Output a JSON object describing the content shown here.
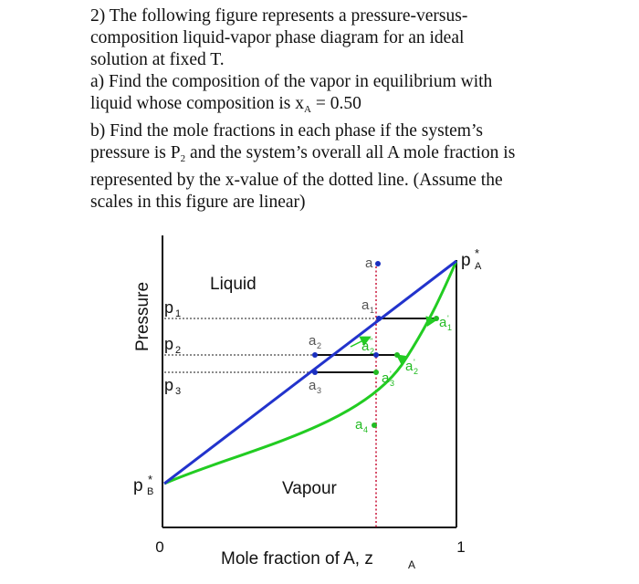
{
  "question": {
    "line1": "2) The following figure represents a pressure-versus-",
    "line2": "composition liquid-vapor phase diagram for an ideal",
    "line3": "solution at fixed T.",
    "line4": "a) Find the composition of the vapor in equilibrium with",
    "line5_pre": "liquid whose composition is x",
    "line5_sub": "A",
    "line5_post": " = 0.50",
    "line6": "b) Find the mole fractions in each phase if the system’s",
    "line7_pre": "pressure is P",
    "line7_sub": "2",
    "line7_post": " and the system’s overall all A mole fraction is",
    "line8": "represented by the x-value of the dotted line. (Assume the",
    "line9": "scales in this figure are linear)"
  },
  "diagram": {
    "y_axis_label": "Pressure",
    "x_axis_label": "Mole fraction of A, z",
    "x_axis_label_sub": "A",
    "x_tick_left": "0",
    "x_tick_right": "1",
    "liquid_label": "Liquid",
    "vapour_label": "Vapour",
    "pb_star": "p",
    "pb_sub": "B",
    "pa_star": "p",
    "pa_sub": "A",
    "star": "*",
    "p1": "p",
    "p1_sub": "1",
    "p2": "p",
    "p2_sub": "2",
    "p3": "p",
    "p3_sub": "3",
    "pt_a": "a",
    "pt_a1": "a",
    "pt_a1_sub": "1",
    "pt_a1p": "a",
    "pt_a1p_sub": "1",
    "pt_a1p_prime": "'",
    "pt_a2": "a",
    "pt_a2_sub": "2",
    "pt_a2pp": "a",
    "pt_a2pp_sub": "2",
    "pt_a2pp_prime": "\"",
    "pt_a2p": "a",
    "pt_a2p_sub": "2",
    "pt_a2p_prime": "'",
    "pt_a3": "a",
    "pt_a3_sub": "3",
    "pt_a3p": "a",
    "pt_a3p_sub": "3",
    "pt_a3p_prime": "'",
    "pt_a4": "a",
    "pt_a4_sub": "4",
    "colors": {
      "liquid_line": "#2233cc",
      "vapour_curve": "#22cc22",
      "tie_line": "#111111",
      "dotted": "#cc2244",
      "blue_point": "#1a2fbf",
      "green_point": "#22bb22"
    }
  }
}
